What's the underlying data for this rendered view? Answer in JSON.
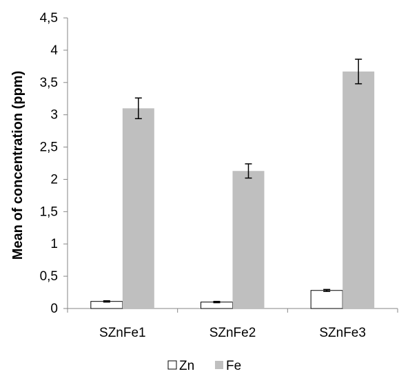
{
  "chart_data": {
    "type": "bar",
    "categories": [
      "SZnFe1",
      "SZnFe2",
      "SZnFe3"
    ],
    "series": [
      {
        "name": "Zn",
        "values": [
          0.11,
          0.1,
          0.28
        ],
        "errors": [
          0.01,
          0.01,
          0.015
        ],
        "color": "#ffffff",
        "stroke": "#000000"
      },
      {
        "name": "Fe",
        "values": [
          3.1,
          2.13,
          3.67
        ],
        "errors": [
          0.16,
          0.11,
          0.19
        ],
        "color": "#bfbfbf",
        "stroke": "none"
      }
    ],
    "title": "",
    "xlabel": "",
    "ylabel": "Mean of concentration (ppm)",
    "ylim": [
      0,
      4.5
    ],
    "yticks": [
      "0",
      "0,5",
      "1",
      "1,5",
      "2",
      "2,5",
      "3",
      "3,5",
      "4",
      "4,5"
    ],
    "ytick_values": [
      0,
      0.5,
      1,
      1.5,
      2,
      2.5,
      3,
      3.5,
      4,
      4.5
    ],
    "grid": false,
    "legend_position": "bottom"
  }
}
